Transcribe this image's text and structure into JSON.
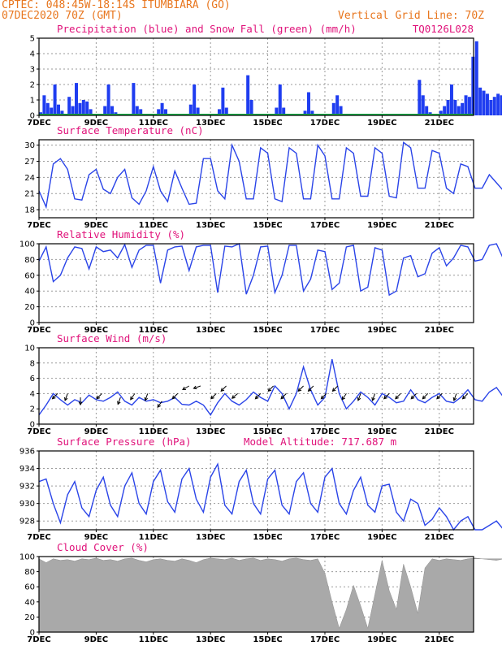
{
  "header": {
    "line1": "CPTEC:   048:45W-18:14S   ITUMBIARA (GO)",
    "line2": "07DEC2020 70Z (GMT)",
    "grid_note": "Vertical Grid Line: 70Z",
    "model_code": "TQ0126L028"
  },
  "x_axis": {
    "ticks": [
      "7DEC",
      "9DEC",
      "11DEC",
      "13DEC",
      "15DEC",
      "17DEC",
      "19DEC",
      "21DEC"
    ],
    "tick_days": [
      0,
      2,
      4,
      6,
      8,
      10,
      12,
      14
    ],
    "range_days": [
      0,
      15.2
    ]
  },
  "colors": {
    "header": "#e8761e",
    "panel_title": "#e0127a",
    "precip": "#1f3df0",
    "snow": "#1bb34a",
    "line": "#2a44e8",
    "arrow": "#000000",
    "cloud": "#a9a9a9"
  },
  "chart_data": [
    {
      "id": "precip",
      "type": "bar",
      "title": "Precipitation (blue) and Snow Fall (green) (mm/h)",
      "ylim": [
        0,
        5
      ],
      "yticks": [
        0,
        1,
        2,
        3,
        4,
        5
      ],
      "series": [
        {
          "name": "Precipitation",
          "bins_per_day": 8,
          "values": [
            0.2,
            1.3,
            0.8,
            0.5,
            2.0,
            0.7,
            0.3,
            0.1,
            1.2,
            0.6,
            2.1,
            0.8,
            1.0,
            0.9,
            0.4,
            0.1,
            0,
            0,
            0.6,
            2.0,
            0.6,
            0.2,
            0,
            0,
            0,
            0,
            2.1,
            0.6,
            0.4,
            0,
            0,
            0,
            0,
            0.4,
            0.8,
            0.4,
            0,
            0,
            0,
            0,
            0,
            0,
            0.7,
            2.0,
            0.5,
            0,
            0,
            0,
            0,
            0,
            0.4,
            1.8,
            0.5,
            0,
            0,
            0,
            0,
            0,
            2.6,
            1.0,
            0,
            0,
            0,
            0,
            0,
            0,
            0.5,
            2.0,
            0.5,
            0,
            0,
            0,
            0,
            0,
            0.3,
            1.5,
            0.3,
            0,
            0,
            0,
            0,
            0,
            0.8,
            1.3,
            0.6,
            0.1,
            0,
            0,
            0,
            0,
            0,
            0,
            0,
            0,
            0,
            0,
            0,
            0,
            0,
            0,
            0,
            0,
            0,
            0,
            0,
            0,
            2.3,
            1.3,
            0.6,
            0.2,
            0,
            0,
            0.3,
            0.6,
            1.0,
            2.0,
            1.0,
            0.6,
            0.8,
            1.3,
            1.2,
            3.8,
            4.8,
            1.8,
            1.6,
            1.4,
            1.0,
            1.2,
            1.4,
            1.3,
            1.1,
            0.9
          ]
        },
        {
          "name": "Snow Fall",
          "values": [
            0
          ]
        }
      ]
    },
    {
      "id": "temperature",
      "type": "line",
      "title": "Surface Temperature (nC)",
      "ylim": [
        16.5,
        31
      ],
      "yticks": [
        18,
        21,
        24,
        27,
        30
      ],
      "points_per_day": 4,
      "values": [
        21.5,
        18.5,
        26.5,
        27.5,
        25.5,
        20.0,
        19.8,
        24.5,
        25.5,
        21.8,
        21.0,
        24.0,
        25.5,
        20.2,
        19.0,
        21.5,
        26.0,
        21.5,
        19.5,
        25.2,
        22.0,
        19.0,
        19.2,
        27.5,
        27.5,
        21.5,
        20.0,
        30.0,
        27.0,
        20.0,
        20.0,
        29.5,
        28.5,
        20.0,
        19.5,
        29.5,
        28.5,
        20.0,
        20.0,
        30.0,
        28.0,
        20.0,
        20.0,
        29.5,
        28.5,
        20.5,
        20.5,
        29.5,
        28.5,
        20.5,
        20.2,
        30.5,
        29.5,
        22.0,
        22.0,
        29.0,
        28.5,
        22.0,
        21.0,
        26.5,
        26.0,
        22.0,
        22.0,
        24.5,
        23.0,
        21.5,
        20.5,
        22.0,
        21.0
      ]
    },
    {
      "id": "humidity",
      "type": "line",
      "title": "Relative Humidity (%)",
      "ylim": [
        0,
        100
      ],
      "yticks": [
        0,
        20,
        40,
        60,
        80,
        100
      ],
      "points_per_day": 4,
      "values": [
        78,
        96,
        52,
        60,
        82,
        96,
        94,
        68,
        96,
        90,
        92,
        82,
        99,
        70,
        92,
        98,
        98,
        50,
        92,
        96,
        97,
        66,
        96,
        98,
        98,
        38,
        97,
        96,
        100,
        36,
        60,
        96,
        97,
        38,
        60,
        98,
        98,
        40,
        55,
        92,
        90,
        42,
        50,
        96,
        98,
        40,
        45,
        95,
        92,
        35,
        40,
        82,
        85,
        58,
        62,
        88,
        95,
        72,
        82,
        98,
        96,
        78,
        80,
        98,
        100,
        80,
        85,
        98,
        99
      ]
    },
    {
      "id": "wind",
      "type": "line",
      "title": "Surface Wind (m/s)",
      "ylim": [
        0,
        10
      ],
      "yticks": [
        0,
        2,
        4,
        6,
        8,
        10
      ],
      "points_per_day": 4,
      "values": [
        1.2,
        2.5,
        4.0,
        3.2,
        2.5,
        3.2,
        2.8,
        3.8,
        3.2,
        3.0,
        3.5,
        4.2,
        3.0,
        2.5,
        3.5,
        3.0,
        3.2,
        2.8,
        3.0,
        3.5,
        2.6,
        2.5,
        3.0,
        2.5,
        1.2,
        2.8,
        4.0,
        3.0,
        2.5,
        3.2,
        4.2,
        3.5,
        3.0,
        5.0,
        4.0,
        2.0,
        4.0,
        7.5,
        4.5,
        2.5,
        3.5,
        8.5,
        4.0,
        2.0,
        3.0,
        4.2,
        3.5,
        2.5,
        4.0,
        3.5,
        2.8,
        3.0,
        4.5,
        3.2,
        2.8,
        3.5,
        4.0,
        3.0,
        2.8,
        3.5,
        4.5,
        3.2,
        3.0,
        4.2,
        4.8,
        3.5,
        2.0,
        4.8,
        5.0
      ],
      "arrows": {
        "days": [
          0.65,
          1.0,
          1.45,
          2.2,
          2.85,
          3.35,
          3.8,
          4.3,
          4.85,
          5.25,
          5.65,
          6.2,
          6.55,
          6.95,
          7.75,
          8.2,
          8.65,
          9.25,
          9.6,
          10.05,
          10.45,
          10.75,
          11.25,
          11.75,
          12.25,
          12.65,
          13.2,
          13.6,
          14.1,
          14.6,
          15.0
        ],
        "speed": [
          4,
          4,
          3.5,
          4,
          3.5,
          4,
          4,
          3,
          4,
          5,
          5,
          4,
          5,
          4,
          4,
          5,
          4,
          5,
          5,
          4,
          5,
          4,
          4,
          4,
          4,
          4,
          4,
          4,
          4,
          4,
          4
        ],
        "dir_deg": [
          225,
          200,
          180,
          225,
          200,
          215,
          200,
          215,
          225,
          240,
          250,
          225,
          225,
          230,
          225,
          225,
          225,
          225,
          225,
          225,
          225,
          215,
          200,
          200,
          225,
          225,
          225,
          225,
          225,
          200,
          225
        ]
      }
    },
    {
      "id": "pressure",
      "type": "line",
      "title": "Surface Pressure (hPa)",
      "annotation": "Model Altitude: 717.687 m",
      "ylim": [
        927,
        936
      ],
      "yticks": [
        928,
        930,
        932,
        934,
        936
      ],
      "points_per_day": 4,
      "values": [
        932.5,
        932.8,
        930.0,
        927.8,
        931.0,
        932.5,
        929.5,
        928.5,
        931.5,
        933.0,
        929.8,
        928.5,
        932.0,
        933.5,
        930.0,
        928.8,
        932.5,
        933.8,
        930.2,
        929.0,
        932.8,
        934.0,
        930.5,
        929.0,
        933.0,
        934.5,
        929.8,
        928.8,
        932.5,
        933.8,
        930.0,
        928.8,
        932.8,
        933.8,
        929.8,
        928.8,
        932.5,
        933.5,
        930.0,
        929.0,
        933.0,
        934.0,
        930.0,
        928.8,
        931.5,
        933.0,
        929.8,
        929.0,
        932.0,
        932.2,
        929.0,
        928.0,
        930.5,
        930.0,
        927.5,
        928.2,
        929.5,
        928.5,
        926.5,
        928.0,
        928.5,
        927.0,
        926.0,
        927.5,
        928.0,
        926.5,
        926.0,
        927.5,
        929.0
      ]
    },
    {
      "id": "cloud",
      "type": "area",
      "title": "Cloud Cover (%)",
      "ylim": [
        0,
        100
      ],
      "yticks": [
        0,
        20,
        40,
        60,
        80,
        100
      ],
      "points_per_day": 4,
      "values": [
        97,
        92,
        97,
        95,
        96,
        94,
        97,
        96,
        98,
        95,
        96,
        94,
        97,
        98,
        95,
        93,
        96,
        97,
        95,
        94,
        97,
        95,
        92,
        96,
        98,
        97,
        96,
        98,
        95,
        97,
        98,
        95,
        97,
        96,
        94,
        97,
        98,
        96,
        95,
        97,
        78,
        40,
        5,
        30,
        62,
        35,
        5,
        50,
        95,
        55,
        30,
        90,
        60,
        25,
        85,
        97,
        95,
        97,
        96,
        95,
        97,
        98,
        97,
        96,
        95,
        97,
        98,
        96,
        97
      ]
    }
  ]
}
